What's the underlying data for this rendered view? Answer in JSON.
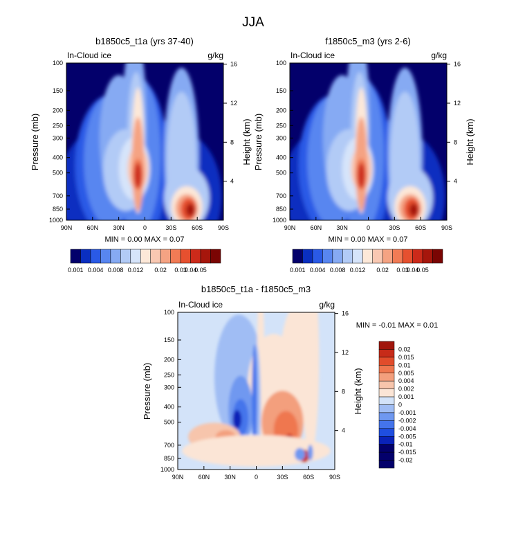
{
  "figure_title": "JJA",
  "colors": {
    "seq": [
      "#03006b",
      "#0a2fc0",
      "#2a5ae6",
      "#5886f0",
      "#86aaf3",
      "#b2cbf6",
      "#d6e4fa",
      "#fde8d8",
      "#f9c8b2",
      "#f5a383",
      "#f17b55",
      "#e6502f",
      "#cc2a1a",
      "#a6160c",
      "#7a0503"
    ],
    "diff": [
      "#03006b",
      "#0a22b8",
      "#1f4ee0",
      "#4474eb",
      "#6f98f0",
      "#a0bdf4",
      "#d3e3f9",
      "#fbe5d6",
      "#f7c5ac",
      "#f39f7d",
      "#ef774f",
      "#e14c2b",
      "#c72b19",
      "#a0150c"
    ]
  },
  "chart_data": [
    {
      "id": "panel1",
      "type": "heatmap",
      "title": "b1850c5_t1a (yrs 37-40)",
      "left_label": "In-Cloud ice",
      "right_label": "g/kg",
      "ylabel": "Pressure (mb)",
      "ylabel_right": "Height (km)",
      "x_ticks": [
        "90N",
        "60N",
        "30N",
        "0",
        "30S",
        "60S",
        "90S"
      ],
      "y_ticks": [
        "100",
        "150",
        "200",
        "250",
        "300",
        "400",
        "500",
        "700",
        "850",
        "1000"
      ],
      "height_ticks": [
        "16",
        "12",
        "8",
        "4"
      ],
      "min_max_text": "MIN =   0.00  MAX =   0.07",
      "colorbar_labels": [
        "0.001",
        "0.004",
        "0.008",
        "0.012",
        "0.02",
        "0.03",
        "0.04",
        "0.05"
      ],
      "peaks": [
        {
          "lat": 8,
          "pressure": 500,
          "value": 0.07
        },
        {
          "lat": -50,
          "pressure": 850,
          "value": 0.06
        }
      ]
    },
    {
      "id": "panel2",
      "type": "heatmap",
      "title": "f1850c5_m3 (yrs 2-6)",
      "left_label": "In-Cloud ice",
      "right_label": "g/kg",
      "ylabel": "Pressure (mb)",
      "ylabel_right": "Height (km)",
      "x_ticks": [
        "90N",
        "60N",
        "30N",
        "0",
        "30S",
        "60S",
        "90S"
      ],
      "y_ticks": [
        "100",
        "150",
        "200",
        "250",
        "300",
        "400",
        "500",
        "700",
        "850",
        "1000"
      ],
      "height_ticks": [
        "16",
        "12",
        "8",
        "4"
      ],
      "min_max_text": "MIN =   0.00  MAX =   0.07",
      "colorbar_labels": [
        "0.001",
        "0.004",
        "0.008",
        "0.012",
        "0.02",
        "0.03",
        "0.04",
        "0.05"
      ],
      "peaks": [
        {
          "lat": 8,
          "pressure": 500,
          "value": 0.07
        },
        {
          "lat": -50,
          "pressure": 850,
          "value": 0.06
        }
      ]
    },
    {
      "id": "panel3",
      "type": "heatmap",
      "title": "b1850c5_t1a - f1850c5_m3",
      "left_label": "In-Cloud ice",
      "right_label": "g/kg",
      "ylabel": "Pressure (mb)",
      "ylabel_right": "Height (km)",
      "x_ticks": [
        "90N",
        "60N",
        "30N",
        "0",
        "30S",
        "60S",
        "90S"
      ],
      "y_ticks": [
        "100",
        "150",
        "200",
        "250",
        "300",
        "400",
        "500",
        "700",
        "850",
        "1000"
      ],
      "height_ticks": [
        "16",
        "12",
        "8",
        "4"
      ],
      "min_max_text": "MIN =  -0.01  MAX =   0.01",
      "colorbar_labels": [
        "0.02",
        "0.015",
        "0.01",
        "0.005",
        "0.004",
        "0.002",
        "0.001",
        "0",
        "-0.001",
        "-0.002",
        "-0.004",
        "-0.005",
        "-0.01",
        "-0.015",
        "-0.02"
      ]
    }
  ]
}
